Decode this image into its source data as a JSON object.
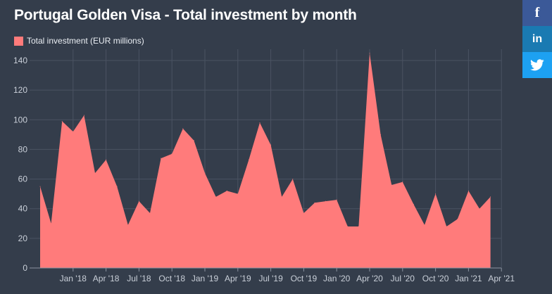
{
  "colors": {
    "background": "#343d4b",
    "area_fill": "#ff7b7b",
    "grid": "#4a5362",
    "axis": "#8b93a0",
    "facebook": "#3b5998",
    "linkedin": "#1a7ab2",
    "twitter": "#1da1f2"
  },
  "share": {
    "facebook_glyph": "f",
    "linkedin_glyph": "in"
  },
  "chart_data": {
    "type": "area",
    "title": "Portugal Golden Visa - Total investment by month",
    "legend": "Total investment (EUR millions)",
    "legend_position": "top-left",
    "grid": true,
    "ylim": [
      0,
      140
    ],
    "yticks": [
      0,
      20,
      40,
      60,
      80,
      100,
      120,
      140
    ],
    "xticks": [
      {
        "label": "Jan '18",
        "x": "2018-01"
      },
      {
        "label": "Apr '18",
        "x": "2018-04"
      },
      {
        "label": "Jul '18",
        "x": "2018-07"
      },
      {
        "label": "Oct '18",
        "x": "2018-10"
      },
      {
        "label": "Jan '19",
        "x": "2019-01"
      },
      {
        "label": "Apr '19",
        "x": "2019-04"
      },
      {
        "label": "Jul '19",
        "x": "2019-07"
      },
      {
        "label": "Oct '19",
        "x": "2019-10"
      },
      {
        "label": "Jan '20",
        "x": "2020-01"
      },
      {
        "label": "Apr '20",
        "x": "2020-04"
      },
      {
        "label": "Jul '20",
        "x": "2020-07"
      },
      {
        "label": "Oct '20",
        "x": "2020-10"
      },
      {
        "label": "Jan '21",
        "x": "2021-01"
      },
      {
        "label": "Apr '21",
        "x": "2021-04"
      }
    ],
    "series": [
      {
        "x": [
          "2017-10",
          "2017-11",
          "2017-12",
          "2018-01",
          "2018-02",
          "2018-03",
          "2018-04",
          "2018-05",
          "2018-06",
          "2018-07",
          "2018-08",
          "2018-09",
          "2018-10",
          "2018-11",
          "2018-12",
          "2019-01",
          "2019-02",
          "2019-03",
          "2019-04",
          "2019-05",
          "2019-06",
          "2019-07",
          "2019-08",
          "2019-09",
          "2019-10",
          "2019-11",
          "2019-12",
          "2020-01",
          "2020-02",
          "2020-03",
          "2020-04",
          "2020-05",
          "2020-06",
          "2020-07",
          "2020-08",
          "2020-09",
          "2020-10",
          "2020-11",
          "2020-12",
          "2021-01",
          "2021-02",
          "2021-03",
          "2021-04"
        ],
        "values": [
          55,
          30,
          99,
          92,
          103,
          64,
          73,
          55,
          29,
          45,
          37,
          74,
          77,
          94,
          86,
          64,
          48,
          52,
          50,
          73,
          98,
          83,
          48,
          60,
          37,
          44,
          45,
          46,
          28,
          28,
          145,
          90,
          56,
          58,
          43,
          29,
          50,
          28,
          33,
          52,
          40,
          48,
          null
        ]
      }
    ]
  }
}
